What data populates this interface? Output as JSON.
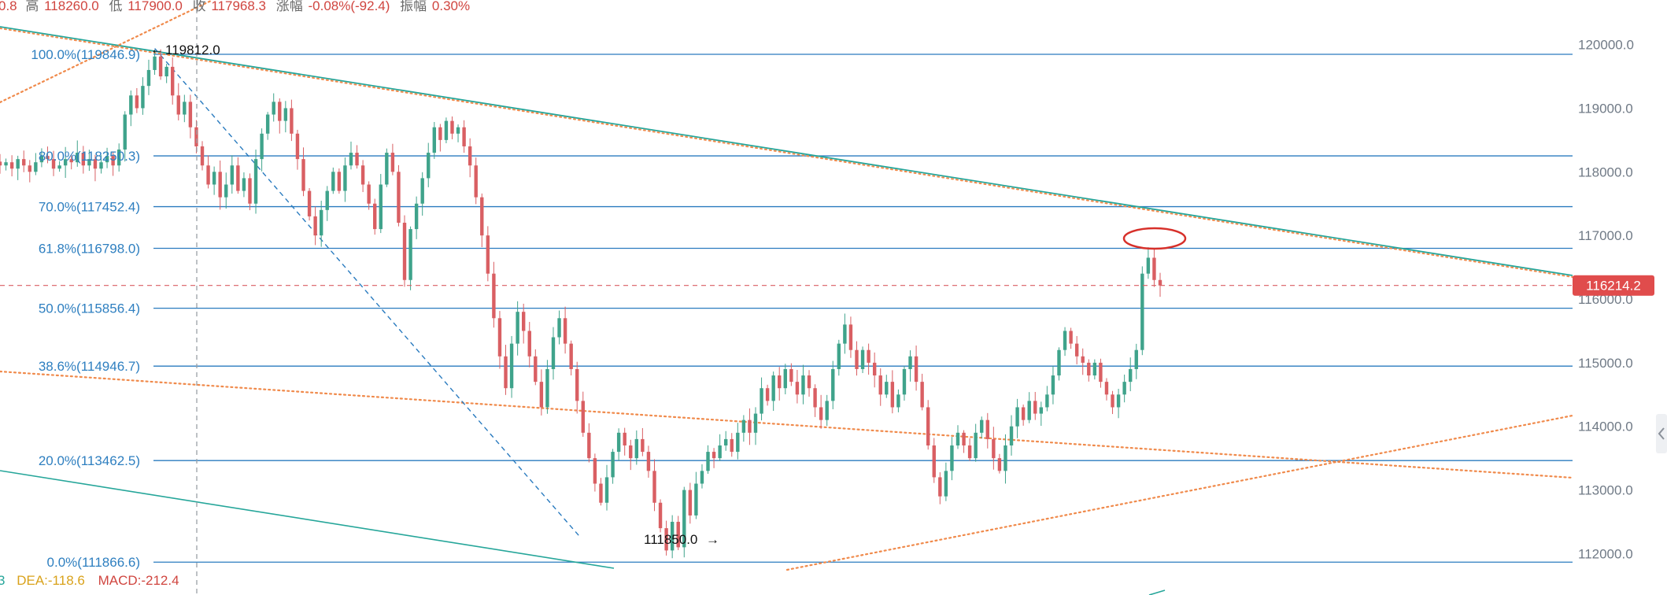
{
  "colors": {
    "up": "#3fa38b",
    "down": "#d95f63",
    "fib_line": "#2a7bbf",
    "fib_label": "#2e7fc0",
    "trend_green": "#26a69a",
    "trend_orange": "#f08a4b",
    "current_price_tag": "#e04c4c",
    "highlight_ellipse": "#d7302a",
    "axis_text": "#707a86"
  },
  "ohlc_bar": {
    "fragment_prefix": "0.8",
    "high_label": "高",
    "high_value": "118260.0",
    "low_label": "低",
    "low_value": "117900.0",
    "close_label": "收",
    "close_value": "117968.3",
    "change_label": "涨幅",
    "change_value": "-0.08%(-92.4)",
    "amplitude_label": "振幅",
    "amplitude_value": "0.30%"
  },
  "macd_bar": {
    "fragment_prefix": "3",
    "dea": "DEA:-118.6",
    "macd": "MACD:-212.4"
  },
  "chart_data": {
    "type": "candlestick",
    "y_range": [
      111350,
      120700
    ],
    "y_ticks": [
      {
        "value": 112000,
        "label": "112000.0"
      },
      {
        "value": 113000,
        "label": "113000.0"
      },
      {
        "value": 114000,
        "label": "114000.0"
      },
      {
        "value": 115000,
        "label": "115000.0"
      },
      {
        "value": 116000,
        "label": "116000.0"
      },
      {
        "value": 117000,
        "label": "117000.0"
      },
      {
        "value": 118000,
        "label": "118000.0"
      },
      {
        "value": 119000,
        "label": "119000.0"
      },
      {
        "value": 120000,
        "label": "120000.0"
      }
    ],
    "fib_levels": [
      {
        "value": 119846.9,
        "label": "100.0%(119846.9)"
      },
      {
        "value": 118250.3,
        "label": "80.0%(118250.3)"
      },
      {
        "value": 117452.4,
        "label": "70.0%(117452.4)"
      },
      {
        "value": 116798.0,
        "label": "61.8%(116798.0)"
      },
      {
        "value": 115856.4,
        "label": "50.0%(115856.4)"
      },
      {
        "value": 114946.7,
        "label": "38.6%(114946.7)"
      },
      {
        "value": 113462.5,
        "label": "20.0%(113462.5)"
      },
      {
        "value": 111866.6,
        "label": "0.0%(111866.6)"
      }
    ],
    "current_price": {
      "value": 116214.2,
      "label": "116214.2"
    },
    "annotations": [
      {
        "text": "119812.0",
        "value": 119812.0,
        "marker": "←"
      },
      {
        "text": "111850.0",
        "value": 111850.0,
        "marker": "→"
      }
    ],
    "close_path": [
      118100,
      118150,
      118050,
      118200,
      118100,
      118000,
      118150,
      118250,
      118200,
      118050,
      118100,
      118200,
      118150,
      118300,
      118100,
      118200,
      118050,
      118150,
      118250,
      118100,
      118350,
      118900,
      119200,
      119000,
      119350,
      119600,
      119812,
      119500,
      119650,
      119200,
      118900,
      119100,
      118700,
      118400,
      118100,
      117800,
      118000,
      117600,
      117800,
      118100,
      117700,
      117900,
      117500,
      118200,
      118600,
      118900,
      119100,
      118800,
      119000,
      118600,
      118200,
      117700,
      117300,
      117000,
      117400,
      117700,
      118000,
      117700,
      118100,
      118300,
      118100,
      117800,
      117500,
      117100,
      117800,
      118300,
      118000,
      117200,
      116300,
      117100,
      117500,
      117900,
      118300,
      118700,
      118500,
      118800,
      118600,
      118700,
      118400,
      118100,
      117600,
      117000,
      116400,
      115700,
      115100,
      114600,
      115300,
      115800,
      115500,
      115100,
      114700,
      114300,
      114900,
      115400,
      115700,
      115300,
      114900,
      114400,
      113900,
      113500,
      113100,
      112800,
      113200,
      113600,
      113900,
      113700,
      113500,
      113800,
      113600,
      113300,
      112800,
      112400,
      112050,
      112500,
      112100,
      113000,
      112600,
      113100,
      113300,
      113600,
      113500,
      113700,
      113800,
      113600,
      113900,
      114100,
      113900,
      114200,
      114600,
      114400,
      114800,
      114600,
      114900,
      114700,
      114500,
      114800,
      114600,
      114300,
      114100,
      114400,
      114900,
      115300,
      115600,
      115200,
      114900,
      115200,
      115000,
      114800,
      114500,
      114700,
      114300,
      114500,
      114900,
      115100,
      114700,
      114300,
      113700,
      113200,
      112900,
      113300,
      113700,
      113900,
      113700,
      113500,
      113900,
      114100,
      113800,
      113500,
      113300,
      113700,
      114000,
      114300,
      114100,
      114400,
      114200,
      114300,
      114500,
      114800,
      115200,
      115500,
      115300,
      115100,
      115000,
      114800,
      115000,
      114700,
      114500,
      114300,
      114500,
      114700,
      114900,
      115200,
      116400,
      116650,
      116300,
      116214
    ]
  }
}
